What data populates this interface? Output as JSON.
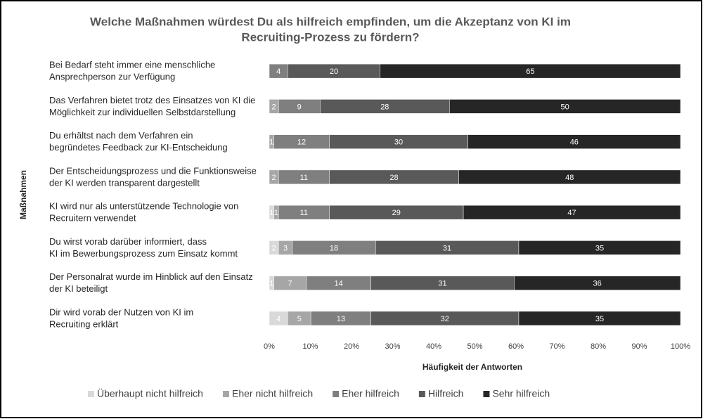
{
  "chart_data": {
    "type": "bar",
    "orientation": "horizontal",
    "stacking": "percent",
    "title": [
      "Welche Maßnahmen würdest Du als hilfreich empfinden, um die Akzeptanz von KI im",
      "Recruiting-Prozess zu fördern?"
    ],
    "y_label": "Maßnahmen",
    "x_label": "Häufigkeit der Antworten",
    "categories": [
      [
        "Bei Bedarf steht immer eine menschliche",
        "Ansprechperson zur Verfügung"
      ],
      [
        "Das Verfahren bietet trotz des Einsatzes von KI die",
        "Möglichkeit zur individuellen Selbstdarstellung"
      ],
      [
        "Du erhältst nach dem Verfahren ein",
        "begründetes Feedback zur KI-Entscheidung"
      ],
      [
        "Der Entscheidungsprozess und die Funktionsweise",
        "der KI werden transparent dargestellt"
      ],
      [
        "KI wird nur als unterstützende Technologie von",
        "Recruitern verwendet"
      ],
      [
        "Du wirst vorab darüber informiert, dass",
        "KI im Bewerbungsprozess zum Einsatz kommt"
      ],
      [
        "Der Personalrat wurde im Hinblick auf den Einsatz",
        "der KI beteiligt"
      ],
      [
        "Dir wird vorab der Nutzen von KI im",
        "Recruiting erklärt"
      ]
    ],
    "series": [
      {
        "name": "Überhaupt nicht hilfreich",
        "color": "#d9d9d9",
        "values": [
          null,
          null,
          null,
          null,
          1,
          2,
          1,
          4
        ]
      },
      {
        "name": "Eher nicht hilfreich",
        "color": "#a6a6a6",
        "values": [
          null,
          2,
          1,
          2,
          1,
          3,
          7,
          5
        ]
      },
      {
        "name": "Eher hilfreich",
        "color": "#7f7f7f",
        "values": [
          4,
          9,
          12,
          11,
          11,
          18,
          14,
          13
        ]
      },
      {
        "name": "Hilfreich",
        "color": "#595959",
        "values": [
          20,
          28,
          30,
          28,
          29,
          31,
          31,
          32
        ]
      },
      {
        "name": "Sehr hilfreich",
        "color": "#262626",
        "values": [
          65,
          50,
          46,
          48,
          47,
          35,
          36,
          35
        ]
      }
    ],
    "xlim": [
      0,
      100
    ],
    "xticks": [
      {
        "value": 0,
        "label": "0%"
      },
      {
        "value": 10,
        "label": "10%"
      },
      {
        "value": 20,
        "label": "20%"
      },
      {
        "value": 30,
        "label": "30%"
      },
      {
        "value": 40,
        "label": "40%"
      },
      {
        "value": 50,
        "label": "50%"
      },
      {
        "value": 60,
        "label": "60%"
      },
      {
        "value": 70,
        "label": "70%"
      },
      {
        "value": 80,
        "label": "80%"
      },
      {
        "value": 90,
        "label": "90%"
      },
      {
        "value": 100,
        "label": "100%"
      }
    ],
    "legend": "bottom"
  }
}
